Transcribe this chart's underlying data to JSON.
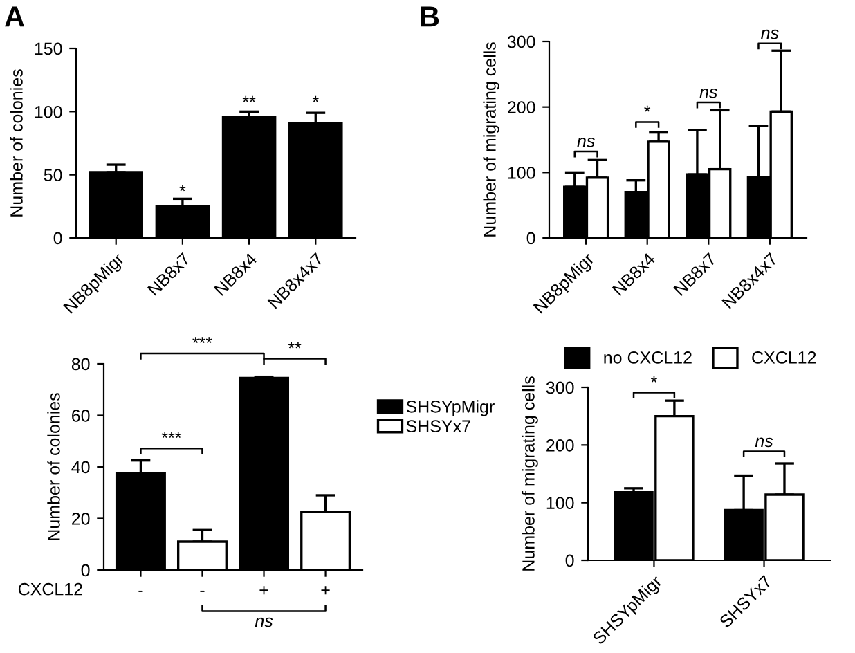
{
  "chart_data": [
    {
      "type": "bar",
      "title": "A",
      "ylabel": "Number of colonies",
      "categories": [
        "NB8pMigr",
        "NB8x7",
        "NB8x4",
        "NB8x4x7"
      ],
      "series": [
        {
          "color": "#000000",
          "values": [
            52,
            25,
            96,
            91
          ],
          "errors": [
            [
              52,
              58
            ],
            [
              25,
              31
            ],
            [
              96,
              100
            ],
            [
              91,
              99
            ]
          ]
        }
      ],
      "ylim": [
        0,
        150
      ],
      "yticks": [
        0,
        50,
        100,
        150
      ],
      "annotations": [
        "*",
        "**",
        "*"
      ]
    },
    {
      "type": "bar",
      "title": "B",
      "ylabel": "Number of migrating cells",
      "categories": [
        "NB8pMigr",
        "NB8x4",
        "NB8x7",
        "NB8x4x7"
      ],
      "series": [
        {
          "name": "no CXCL12",
          "color": "#000000",
          "values": [
            78,
            70,
            97,
            93
          ],
          "errors": [
            [
              78,
              100
            ],
            [
              70,
              88
            ],
            [
              97,
              165
            ],
            [
              93,
              171
            ]
          ]
        },
        {
          "name": "CXCL12",
          "color": "#ffffff",
          "values": [
            92,
            147,
            105,
            193
          ],
          "errors": [
            [
              92,
              119
            ],
            [
              147,
              162
            ],
            [
              105,
              195
            ],
            [
              193,
              286
            ]
          ]
        }
      ],
      "ylim": [
        0,
        300
      ],
      "yticks": [
        0,
        100,
        200,
        300
      ],
      "legend": "bottom",
      "annotations": [
        "ns",
        "*",
        "ns",
        "ns"
      ]
    },
    {
      "type": "bar",
      "xlabel": "CXCL12",
      "ylabel": "Number of colonies",
      "categories": [
        "-",
        "-",
        "+",
        "+"
      ],
      "series": [
        {
          "name": "SHSYpMigr",
          "color": "#000000",
          "values": [
            37.5,
            null,
            74.5,
            null
          ],
          "errors": [
            [
              37.5,
              42.5
            ],
            null,
            [
              74.5,
              75
            ],
            null
          ]
        },
        {
          "name": "SHSYx7",
          "color": "#ffffff",
          "values": [
            null,
            11,
            null,
            22.5
          ],
          "errors": [
            null,
            [
              11,
              15.5
            ],
            null,
            [
              22.5,
              29
            ]
          ]
        }
      ],
      "ylim": [
        0,
        80
      ],
      "yticks": [
        0,
        20,
        40,
        60,
        80
      ],
      "legend": "right",
      "annotations": [
        "***",
        "***",
        "**",
        "ns"
      ]
    },
    {
      "type": "bar",
      "ylabel": "Number of migrating cells",
      "categories": [
        "SHSYpMigr",
        "SHSYx7"
      ],
      "series": [
        {
          "color": "#000000",
          "values": [
            118,
            87
          ],
          "errors": [
            [
              118,
              125
            ],
            [
              87,
              147
            ]
          ]
        },
        {
          "color": "#ffffff",
          "values": [
            250,
            114
          ],
          "errors": [
            [
              250,
              277
            ],
            [
              114,
              168
            ]
          ]
        }
      ],
      "ylim": [
        0,
        300
      ],
      "yticks": [
        0,
        100,
        200,
        300
      ],
      "annotations": [
        "*",
        "ns"
      ]
    }
  ]
}
